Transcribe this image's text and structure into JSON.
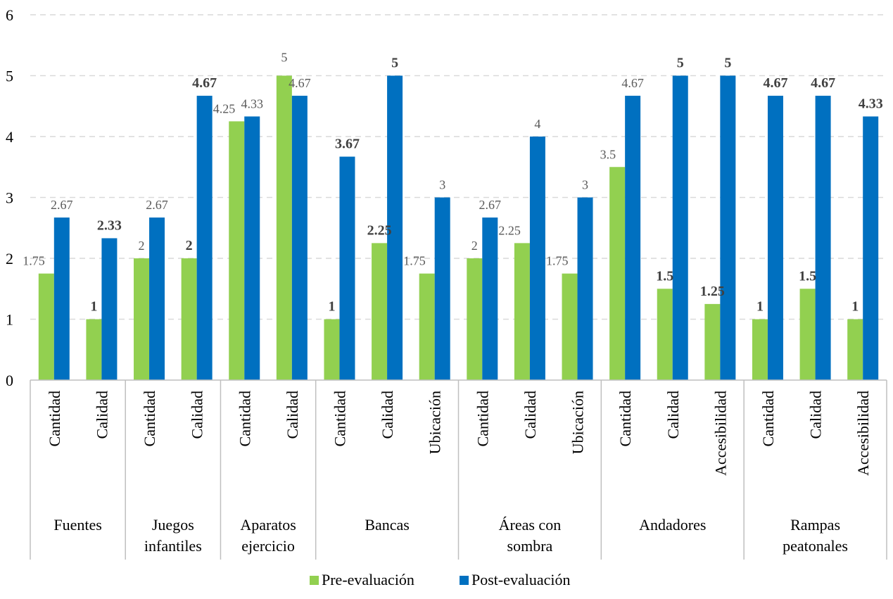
{
  "chart_data": {
    "type": "bar",
    "title": "",
    "xlabel": "",
    "ylabel": "",
    "ylim": [
      0,
      6
    ],
    "yticks": [
      0,
      1,
      2,
      3,
      4,
      5,
      6
    ],
    "grid": true,
    "legend_position": "bottom",
    "groups": [
      {
        "label": "Fuentes",
        "categories": [
          "Cantidad",
          "Calidad"
        ]
      },
      {
        "label": "Juegos infantiles",
        "categories": [
          "Cantidad",
          "Calidad"
        ]
      },
      {
        "label": "Aparatos ejercicio",
        "categories": [
          "Cantidad",
          "Calidad"
        ]
      },
      {
        "label": "Bancas",
        "categories": [
          "Cantidad",
          "Calidad",
          "Ubicación"
        ]
      },
      {
        "label": "Áreas con sombra",
        "categories": [
          "Cantidad",
          "Calidad",
          "Ubicación"
        ]
      },
      {
        "label": "Andadores",
        "categories": [
          "Cantidad",
          "Calidad",
          "Accesibilidad"
        ]
      },
      {
        "label": "Rampas peatonales",
        "categories": [
          "Cantidad",
          "Calidad",
          "Accesibilidad"
        ]
      }
    ],
    "series": [
      {
        "name": "Pre-evaluación",
        "color": "#92d050",
        "values": [
          1.75,
          1,
          2,
          2,
          4.25,
          5,
          1,
          2.25,
          1.75,
          2,
          2.25,
          1.75,
          3.5,
          1.5,
          1.25,
          1,
          1.5,
          1
        ],
        "labels": [
          "1.75",
          "1",
          "2",
          "2",
          "4.25",
          "",
          "1",
          "2.25",
          "1.75",
          "2",
          "2.25",
          "1.75",
          "3.5",
          "1.5",
          "1.25",
          "1",
          "1.5",
          "1"
        ],
        "bold": [
          false,
          true,
          false,
          true,
          false,
          false,
          true,
          true,
          false,
          false,
          false,
          false,
          false,
          true,
          true,
          true,
          true,
          true
        ]
      },
      {
        "name": "Post-evaluación",
        "color": "#0070c0",
        "values": [
          2.67,
          2.33,
          2.67,
          4.67,
          4.33,
          4.67,
          3.67,
          5,
          3,
          2.67,
          4,
          3,
          4.67,
          5,
          5,
          4.67,
          4.67,
          4.33
        ],
        "labels": [
          "2.67",
          "2.33",
          "2.67",
          "4.67",
          "4.33",
          "4.67",
          "3.67",
          "5",
          "3",
          "2.67",
          "4",
          "3",
          "4.67",
          "5",
          "5",
          "4.67",
          "4.67",
          "4.33"
        ],
        "bold": [
          false,
          true,
          false,
          true,
          false,
          false,
          true,
          true,
          false,
          false,
          false,
          false,
          false,
          true,
          true,
          true,
          true,
          true
        ]
      }
    ],
    "annotations": [
      {
        "text": "5",
        "category_index": 5,
        "value": 5,
        "note": "label of Pre-evaluación bar placed above"
      }
    ]
  },
  "colors": {
    "grid": "#d9d9d9",
    "axis": "#bfbfbf",
    "label": "#595959",
    "bold_label": "#404040",
    "text": "#000000"
  }
}
